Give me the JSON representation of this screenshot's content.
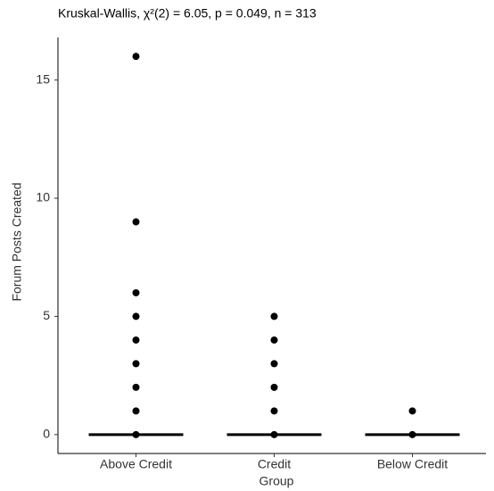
{
  "chart_data": {
    "type": "strip",
    "title": "Kruskal-Wallis, χ²(2) = 6.05, p = 0.049, n = 313",
    "xlabel": "Group",
    "ylabel": "Forum Posts Created",
    "categories": [
      "Above Credit",
      "Credit",
      "Below Credit"
    ],
    "values": [
      [
        0,
        1,
        2,
        3,
        4,
        5,
        6,
        9,
        16
      ],
      [
        0,
        1,
        2,
        3,
        4,
        5
      ],
      [
        0,
        1
      ]
    ],
    "medians": [
      0,
      0,
      0
    ],
    "color": "#000000",
    "ylim": [
      -0.8,
      16.8
    ],
    "yticks": [
      0,
      5,
      10,
      15
    ],
    "grid": false
  }
}
